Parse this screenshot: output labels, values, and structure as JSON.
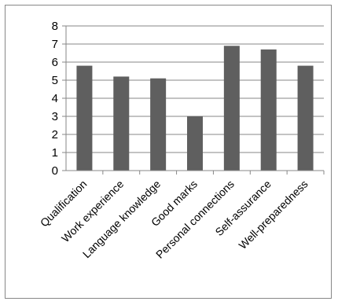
{
  "chart_data": {
    "type": "bar",
    "categories": [
      "Qualification",
      "Work experience",
      "Language knowledge",
      "Good marks",
      "Personal connections",
      "Self-assurance",
      "Well-preparedness"
    ],
    "values": [
      5.8,
      5.2,
      5.1,
      3.0,
      6.9,
      6.7,
      5.8
    ],
    "ylim": [
      0,
      8
    ],
    "yticks": [
      0,
      1,
      2,
      3,
      4,
      5,
      6,
      7,
      8
    ],
    "grid": true,
    "legend": "none",
    "colors": {
      "bar": "#5f5f5f",
      "grid": "#878787",
      "axis": "#878787"
    }
  }
}
